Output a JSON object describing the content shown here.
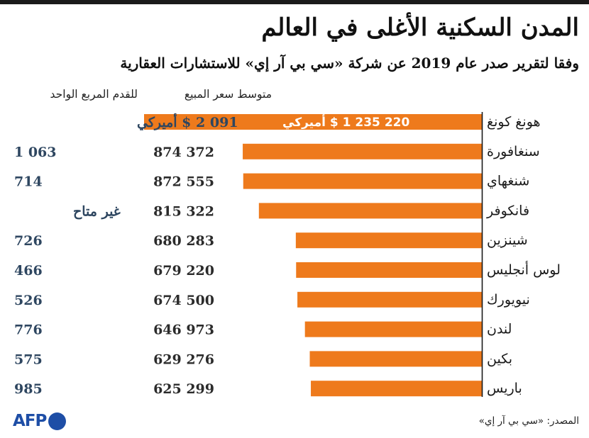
{
  "title": "المدن السكنية الأغلى في العالم",
  "subtitle": "وفقا لتقرير صدر عام 2019 عن شركة «سي بي آر إي» للاستشارات العقارية",
  "headers": {
    "avg_price": "متوسط سعر المبيع",
    "per_sqft": "للقدم المربع الواحد"
  },
  "source": "المصدر: «سي بي آر إي»",
  "logo": {
    "text": "AFP",
    "icon": "afp-logo-dot"
  },
  "colors": {
    "bar": "#ee7a1c",
    "per_sqft_text": "#2e4660",
    "price_text": "#2b2b2b",
    "baseline": "#1a1a1a",
    "logo": "#1e4ea6"
  },
  "chart_data": {
    "type": "bar",
    "orientation": "horizontal",
    "direction": "rtl",
    "unit": "$ أميركي",
    "categories": [
      "هونغ كونغ",
      "سنغافورة",
      "شنغهاي",
      "فانكوفر",
      "شينزين",
      "لوس أنجليس",
      "نيويورك",
      "لندن",
      "بكين",
      "باريس"
    ],
    "values": [
      1235220,
      874372,
      872555,
      815322,
      680283,
      679220,
      674500,
      646973,
      629276,
      625299
    ],
    "value_labels": [
      "220 235 1 $ أميركي",
      "874 372",
      "872 555",
      "815 322",
      "680 283",
      "679 220",
      "674 500",
      "646 973",
      "629 276",
      "625 299"
    ],
    "per_sqft_labels": [
      "091 2 $ أميركي",
      "1 063",
      "714",
      "غير متاح",
      "726",
      "466",
      "526",
      "776",
      "575",
      "985"
    ],
    "xlim": [
      0,
      1235220
    ]
  }
}
